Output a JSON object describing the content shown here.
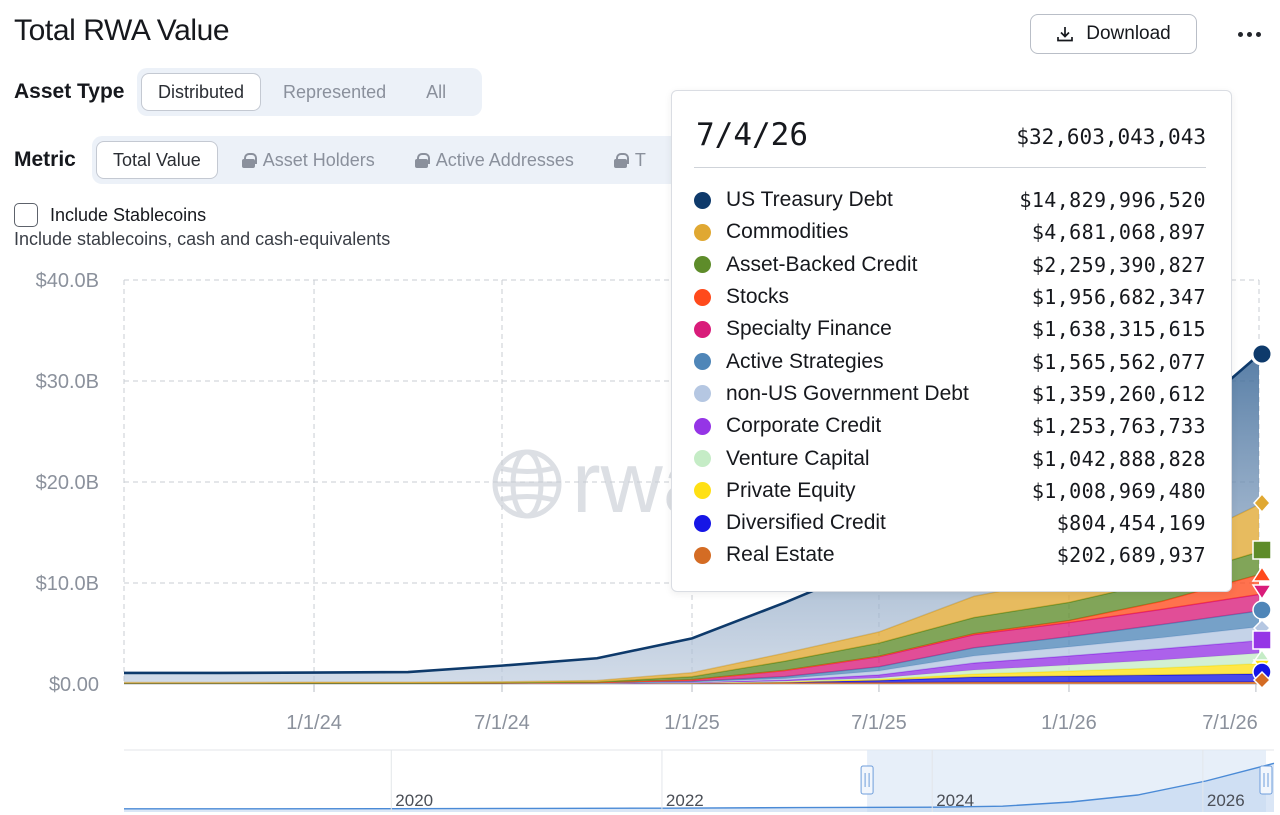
{
  "header": {
    "title": "Total RWA Value",
    "download_label": "Download"
  },
  "asset_type": {
    "label": "Asset Type",
    "options": [
      "Distributed",
      "Represented",
      "All"
    ],
    "selected": "Distributed"
  },
  "metric": {
    "label": "Metric",
    "options": [
      {
        "label": "Total Value",
        "locked": false
      },
      {
        "label": "Asset Holders",
        "locked": true
      },
      {
        "label": "Active Addresses",
        "locked": true
      },
      {
        "label": "T",
        "locked": true
      }
    ],
    "selected": "Total Value"
  },
  "stablecoins": {
    "label": "Include Stablecoins",
    "checked": false,
    "description": "Include stablecoins, cash and cash-equivalents"
  },
  "watermark": "rwa",
  "tooltip": {
    "date": "7/4/26",
    "total": "$32,603,043,043",
    "items": [
      {
        "name": "US Treasury Debt",
        "value": "$14,829,996,520",
        "color": "#0e3a6b"
      },
      {
        "name": "Commodities",
        "value": "$4,681,068,897",
        "color": "#e0a832"
      },
      {
        "name": "Asset-Backed Credit",
        "value": "$2,259,390,827",
        "color": "#5e8c2a"
      },
      {
        "name": "Stocks",
        "value": "$1,956,682,347",
        "color": "#ff4a1c"
      },
      {
        "name": "Specialty Finance",
        "value": "$1,638,315,615",
        "color": "#d91c7a"
      },
      {
        "name": "Active Strategies",
        "value": "$1,565,562,077",
        "color": "#4f86b8"
      },
      {
        "name": "non-US Government Debt",
        "value": "$1,359,260,612",
        "color": "#b5c7e2"
      },
      {
        "name": "Corporate Credit",
        "value": "$1,253,763,733",
        "color": "#9535e6"
      },
      {
        "name": "Venture Capital",
        "value": "$1,042,888,828",
        "color": "#c5ecc6"
      },
      {
        "name": "Private Equity",
        "value": "$1,008,969,480",
        "color": "#ffe014"
      },
      {
        "name": "Diversified Credit",
        "value": "$804,454,169",
        "color": "#1616e6"
      },
      {
        "name": "Real Estate",
        "value": "$202,689,937",
        "color": "#d46c24"
      }
    ]
  },
  "chart_data": {
    "type": "area",
    "stacked": true,
    "y_ticks": [
      "$0.00",
      "$10.0B",
      "$20.0B",
      "$30.0B",
      "$40.0B"
    ],
    "ylim": [
      0,
      40
    ],
    "y_unit": "billions USD",
    "x_ticks": [
      "1/1/24",
      "7/1/24",
      "1/1/25",
      "7/1/25",
      "1/1/26",
      "7/1/26"
    ],
    "x": [
      "2023-07-01",
      "2023-10-01",
      "2024-01-01",
      "2024-04-01",
      "2024-07-01",
      "2024-10-01",
      "2025-01-01",
      "2025-04-01",
      "2025-07-01",
      "2025-10-01",
      "2026-01-01",
      "2026-04-01",
      "2026-07-04"
    ],
    "series": [
      {
        "name": "US Treasury Debt",
        "values": [
          0.95,
          0.95,
          0.95,
          1.0,
          1.6,
          2.2,
          3.4,
          5.0,
          6.8,
          7.6,
          8.6,
          11.2,
          14.83
        ]
      },
      {
        "name": "Commodities",
        "values": [
          0.05,
          0.05,
          0.08,
          0.08,
          0.1,
          0.15,
          0.4,
          0.8,
          1.1,
          2.1,
          2.4,
          2.9,
          4.68
        ]
      },
      {
        "name": "Asset-Backed Credit",
        "values": [
          0.0,
          0.0,
          0.0,
          0.0,
          0.02,
          0.05,
          0.3,
          0.9,
          1.3,
          1.6,
          1.8,
          2.0,
          2.26
        ]
      },
      {
        "name": "Stocks",
        "values": [
          0.0,
          0.0,
          0.0,
          0.0,
          0.0,
          0.0,
          0.01,
          0.03,
          0.05,
          0.1,
          0.2,
          0.8,
          1.96
        ]
      },
      {
        "name": "Specialty Finance",
        "values": [
          0.0,
          0.0,
          0.0,
          0.0,
          0.0,
          0.02,
          0.15,
          0.6,
          1.0,
          1.3,
          1.4,
          1.5,
          1.64
        ]
      },
      {
        "name": "Active Strategies",
        "values": [
          0.0,
          0.0,
          0.0,
          0.0,
          0.0,
          0.01,
          0.05,
          0.2,
          0.4,
          0.8,
          1.0,
          1.3,
          1.57
        ]
      },
      {
        "name": "non-US Government Debt",
        "values": [
          0.0,
          0.0,
          0.0,
          0.0,
          0.0,
          0.01,
          0.04,
          0.15,
          0.4,
          0.7,
          0.9,
          1.1,
          1.36
        ]
      },
      {
        "name": "Corporate Credit",
        "values": [
          0.0,
          0.0,
          0.0,
          0.0,
          0.0,
          0.01,
          0.02,
          0.1,
          0.3,
          0.7,
          0.9,
          1.1,
          1.25
        ]
      },
      {
        "name": "Venture Capital",
        "values": [
          0.0,
          0.0,
          0.0,
          0.0,
          0.0,
          0.0,
          0.01,
          0.05,
          0.15,
          0.4,
          0.6,
          0.8,
          1.04
        ]
      },
      {
        "name": "Private Equity",
        "values": [
          0.0,
          0.0,
          0.0,
          0.0,
          0.0,
          0.0,
          0.01,
          0.03,
          0.1,
          0.3,
          0.5,
          0.7,
          1.01
        ]
      },
      {
        "name": "Diversified Credit",
        "values": [
          0.0,
          0.0,
          0.0,
          0.0,
          0.0,
          0.0,
          0.01,
          0.05,
          0.2,
          0.5,
          0.6,
          0.7,
          0.8
        ]
      },
      {
        "name": "Real Estate",
        "values": [
          0.1,
          0.1,
          0.1,
          0.1,
          0.1,
          0.1,
          0.12,
          0.15,
          0.15,
          0.18,
          0.18,
          0.19,
          0.2
        ]
      }
    ],
    "navigator": {
      "x_ticks": [
        "2020",
        "2022",
        "2024",
        "2026"
      ],
      "x": [
        "2018-01-01",
        "2019-01-01",
        "2020-01-01",
        "2021-01-01",
        "2022-01-01",
        "2023-01-01",
        "2024-01-01",
        "2024-07-01",
        "2025-01-01",
        "2025-07-01",
        "2026-01-01",
        "2026-07-04"
      ],
      "values": [
        0.1,
        0.1,
        0.2,
        0.4,
        0.6,
        1.0,
        1.3,
        2.0,
        5.0,
        10.0,
        20.0,
        32.6
      ]
    },
    "grid": true,
    "legend": "tooltip"
  }
}
